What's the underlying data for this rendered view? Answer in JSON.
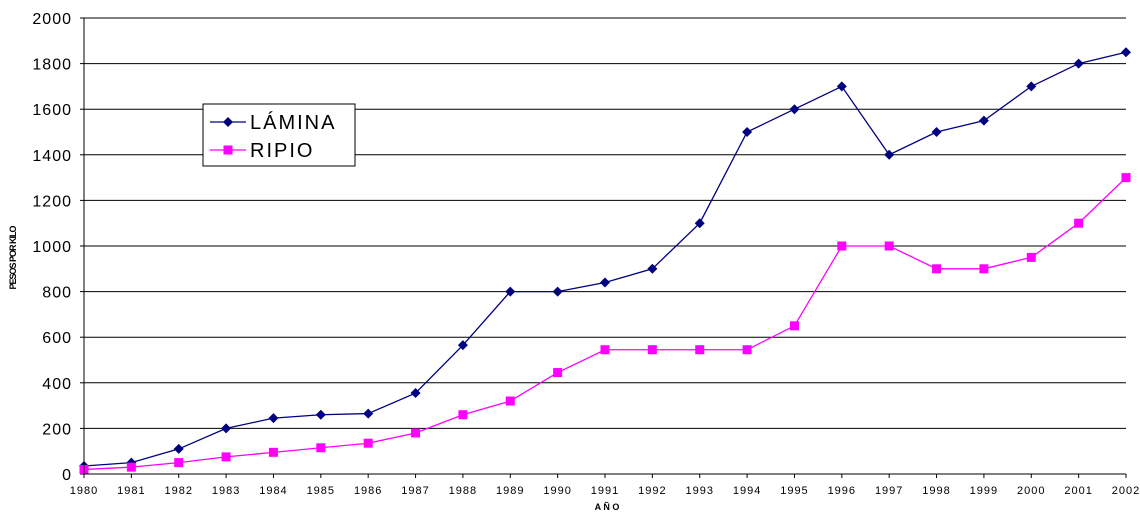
{
  "chart_data": {
    "type": "line",
    "title": "",
    "xlabel": "A Ñ O",
    "ylabel": "PESOS POR KILO",
    "ylim": [
      0,
      2000
    ],
    "yticks": [
      0,
      200,
      400,
      600,
      800,
      1000,
      1200,
      1400,
      1600,
      1800,
      2000
    ],
    "grid": true,
    "legend": "upper-left",
    "categories": [
      "1980",
      "1981",
      "1982",
      "1983",
      "1984",
      "1985",
      "1986",
      "1987",
      "1988",
      "1989",
      "1990",
      "1991",
      "1992",
      "1993",
      "1994",
      "1995",
      "1996",
      "1997",
      "1998",
      "1999",
      "2000",
      "2001",
      "2002"
    ],
    "series": [
      {
        "name": "LÁMINA",
        "marker": "diamond",
        "color": "#000080",
        "values": [
          35,
          50,
          110,
          200,
          245,
          260,
          265,
          355,
          565,
          800,
          800,
          840,
          900,
          1100,
          1500,
          1600,
          1700,
          1400,
          1500,
          1550,
          1700,
          1800,
          1850
        ]
      },
      {
        "name": "RIPIO",
        "marker": "square",
        "color": "#ff00ff",
        "values": [
          20,
          30,
          50,
          75,
          95,
          115,
          135,
          180,
          260,
          320,
          445,
          545,
          545,
          545,
          545,
          650,
          1000,
          1000,
          900,
          900,
          950,
          1100,
          1300
        ]
      }
    ]
  }
}
